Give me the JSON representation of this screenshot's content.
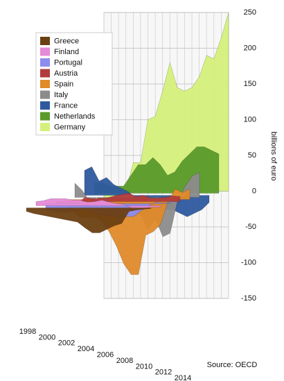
{
  "chart_data": {
    "type": "area3d",
    "y_axis_label": "billions of euro",
    "source": "Source: OECD",
    "x": [
      1998,
      1999,
      2000,
      2001,
      2002,
      2003,
      2004,
      2005,
      2006,
      2007,
      2008,
      2009,
      2010,
      2011,
      2012,
      2013,
      2014,
      2015
    ],
    "xlim": [
      1998,
      2015
    ],
    "xticks": [
      1998,
      2000,
      2002,
      2004,
      2006,
      2008,
      2010,
      2012,
      2014
    ],
    "ylim": [
      -150,
      250
    ],
    "yticks": [
      -150,
      -100,
      -50,
      0,
      50,
      100,
      150,
      200,
      250
    ],
    "grid": true,
    "legend": "top-left",
    "series": [
      {
        "name": "Greece",
        "color": "#6b3f12",
        "values": [
          -5,
          -8,
          -10,
          -12,
          -14,
          -16,
          -18,
          -20,
          -28,
          -35,
          -35,
          -30,
          -25,
          -22,
          -5,
          -3,
          -2,
          -1
        ]
      },
      {
        "name": "Finland",
        "color": "#e58ad8",
        "values": [
          6,
          7,
          10,
          10,
          10,
          8,
          8,
          5,
          6,
          8,
          5,
          3,
          2,
          -3,
          -4,
          -3,
          -2,
          -2
        ]
      },
      {
        "name": "Portugal",
        "color": "#8a8cee",
        "values": [
          -8,
          -10,
          -13,
          -12,
          -10,
          -8,
          -10,
          -15,
          -17,
          -17,
          -20,
          -18,
          -18,
          -10,
          -3,
          2,
          1,
          1
        ]
      },
      {
        "name": "Austria",
        "color": "#b23b3b",
        "values": [
          -5,
          -6,
          -2,
          -3,
          6,
          4,
          5,
          5,
          8,
          10,
          12,
          7,
          9,
          5,
          5,
          6,
          8,
          7
        ]
      },
      {
        "name": "Spain",
        "color": "#e08a2a",
        "values": [
          -5,
          -15,
          -25,
          -25,
          -25,
          -30,
          -45,
          -65,
          -90,
          -105,
          -105,
          -50,
          -45,
          -35,
          -3,
          15,
          10,
          15
        ]
      },
      {
        "name": "Italy",
        "color": "#8c8c8c",
        "values": [
          20,
          10,
          -5,
          0,
          -10,
          -15,
          -10,
          -15,
          -25,
          -25,
          -45,
          -30,
          -55,
          -50,
          -5,
          15,
          30,
          35
        ]
      },
      {
        "name": "France",
        "color": "#2d5a9e",
        "values": [
          35,
          40,
          20,
          25,
          15,
          10,
          5,
          -5,
          -10,
          -15,
          -20,
          -20,
          -20,
          -25,
          -30,
          -25,
          -20,
          -10
        ]
      },
      {
        "name": "Netherlands",
        "color": "#5a9a2a",
        "values": [
          15,
          15,
          10,
          10,
          10,
          25,
          40,
          40,
          50,
          40,
          25,
          30,
          45,
          55,
          65,
          65,
          60,
          55
        ]
      },
      {
        "name": "Germany",
        "color": "#d4f07a",
        "values": [
          -15,
          -25,
          -30,
          0,
          40,
          40,
          100,
          105,
          140,
          180,
          145,
          140,
          145,
          160,
          190,
          185,
          215,
          250
        ]
      }
    ]
  }
}
